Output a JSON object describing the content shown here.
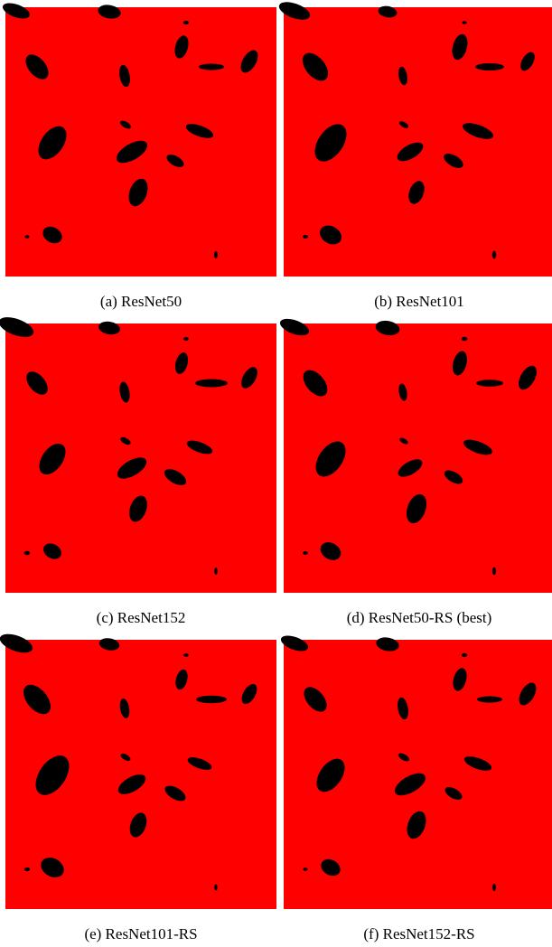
{
  "figure": {
    "panels": [
      {
        "caption": "(a) ResNet50"
      },
      {
        "caption": "(b) ResNet101"
      },
      {
        "caption": "(c) ResNet152"
      },
      {
        "caption": "(d) ResNet50-RS (best)"
      },
      {
        "caption": "(e) ResNet101-RS"
      },
      {
        "caption": "(f) ResNet152-RS"
      }
    ]
  }
}
